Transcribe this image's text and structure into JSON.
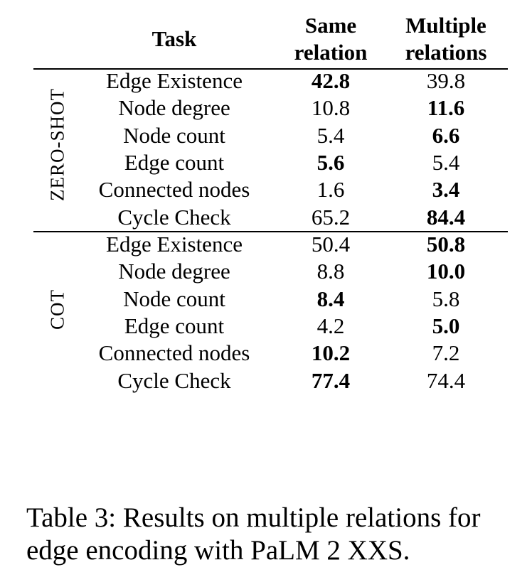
{
  "table": {
    "headers": {
      "task": "Task",
      "same_line1": "Same",
      "same_line2": "relation",
      "multi_line1": "Multiple",
      "multi_line2": "relations"
    },
    "groups": [
      {
        "label": "ZERO-SHOT",
        "rows": [
          {
            "task": "Edge Existence",
            "same": "42.8",
            "multiple": "39.8",
            "best": "same"
          },
          {
            "task": "Node degree",
            "same": "10.8",
            "multiple": "11.6",
            "best": "multiple"
          },
          {
            "task": "Node count",
            "same": "5.4",
            "multiple": "6.6",
            "best": "multiple"
          },
          {
            "task": "Edge count",
            "same": "5.6",
            "multiple": "5.4",
            "best": "same"
          },
          {
            "task": "Connected nodes",
            "same": "1.6",
            "multiple": "3.4",
            "best": "multiple"
          },
          {
            "task": "Cycle Check",
            "same": "65.2",
            "multiple": "84.4",
            "best": "multiple"
          }
        ]
      },
      {
        "label": "COT",
        "rows": [
          {
            "task": "Edge Existence",
            "same": "50.4",
            "multiple": "50.8",
            "best": "multiple"
          },
          {
            "task": "Node degree",
            "same": "8.8",
            "multiple": "10.0",
            "best": "multiple"
          },
          {
            "task": "Node count",
            "same": "8.4",
            "multiple": "5.8",
            "best": "same"
          },
          {
            "task": "Edge count",
            "same": "4.2",
            "multiple": "5.0",
            "best": "multiple"
          },
          {
            "task": "Connected nodes",
            "same": "10.2",
            "multiple": "7.2",
            "best": "same"
          },
          {
            "task": "Cycle Check",
            "same": "77.4",
            "multiple": "74.4",
            "best": "same"
          }
        ]
      }
    ]
  },
  "caption": "Table 3: Results on multiple relations for edge encoding with PaLM 2 XXS."
}
